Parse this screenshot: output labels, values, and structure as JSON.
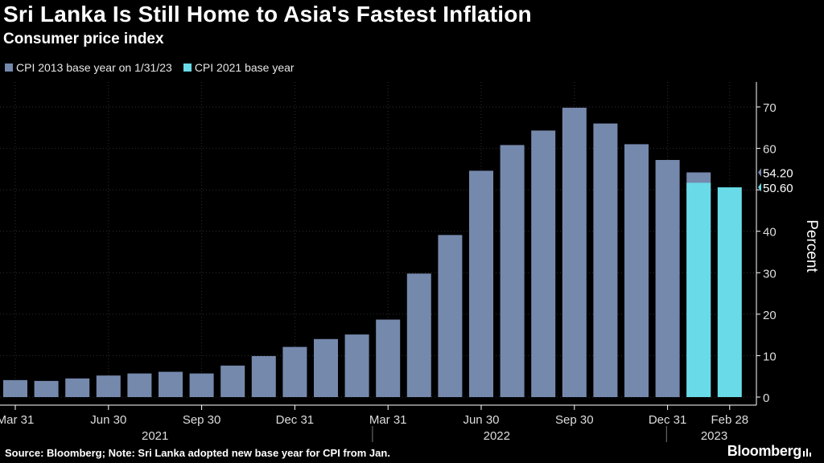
{
  "title": "Sri Lanka Is Still Home to Asia's Fastest Inflation",
  "subtitle": "Consumer price index",
  "source": "Source: Bloomberg; Note: Sri Lanka adopted new base year for CPI from Jan.",
  "brand": "Bloomberg",
  "colors": {
    "cpi2013": "#7589ad",
    "cpi2021": "#69dbe8",
    "background": "#000000"
  },
  "chart_data": {
    "type": "bar",
    "ylabel": "Percent",
    "ylim": [
      0,
      70
    ],
    "yticks": [
      0,
      10,
      20,
      30,
      40,
      50,
      60,
      70
    ],
    "grid": true,
    "legend_position": "top-left",
    "x_tick_labels": [
      {
        "label": "Mar 31",
        "index": 0
      },
      {
        "label": "Jun 30",
        "index": 3
      },
      {
        "label": "Sep 30",
        "index": 6
      },
      {
        "label": "Dec 31",
        "index": 9
      },
      {
        "label": "Mar 31",
        "index": 12
      },
      {
        "label": "Jun 30",
        "index": 15
      },
      {
        "label": "Sep 30",
        "index": 18
      },
      {
        "label": "Dec 31",
        "index": 21
      },
      {
        "label": "Feb 28",
        "index": 23
      }
    ],
    "year_labels": [
      {
        "label": "2021",
        "index": 4.5
      },
      {
        "label": "2022",
        "index": 15.5
      },
      {
        "label": "2023",
        "index": 22.5
      }
    ],
    "series": [
      {
        "name": "CPI 2013 base year on 1/31/23",
        "color": "#7589ad",
        "values": [
          4.1,
          3.9,
          4.5,
          5.2,
          5.7,
          6.1,
          5.7,
          7.6,
          9.9,
          12.1,
          14.0,
          15.1,
          18.7,
          29.8,
          39.1,
          54.6,
          60.8,
          64.3,
          69.8,
          66.0,
          61.0,
          57.2,
          54.2,
          null
        ]
      },
      {
        "name": "CPI 2021 base year",
        "color": "#69dbe8",
        "values": [
          null,
          null,
          null,
          null,
          null,
          null,
          null,
          null,
          null,
          null,
          null,
          null,
          null,
          null,
          null,
          null,
          null,
          null,
          null,
          null,
          null,
          null,
          51.7,
          50.6
        ]
      }
    ],
    "value_labels": [
      {
        "text": "54.20",
        "value": 54.2,
        "color": "#7589ad"
      },
      {
        "text": "50.60",
        "value": 50.6,
        "color": "#69dbe8"
      }
    ]
  }
}
